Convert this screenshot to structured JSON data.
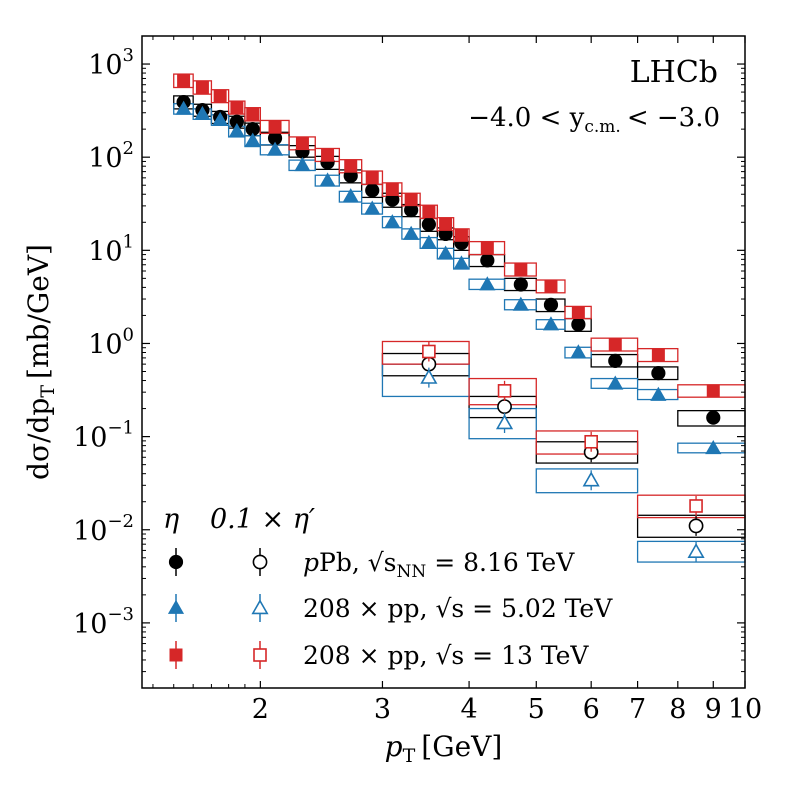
{
  "chart_data": {
    "type": "scatter",
    "x_scale": "log",
    "y_scale": "log",
    "xlim": [
      1.35,
      10
    ],
    "ylim": [
      0.0002,
      2000
    ],
    "xlabel_main": "p",
    "xlabel_sub": "T",
    "xlabel_unit": "[GeV]",
    "ylabel": "dσ/dp",
    "ylabel_sub": "T",
    "ylabel_unit": "[mb/GeV]",
    "x_ticks": [
      {
        "value": 2,
        "label": "2"
      },
      {
        "value": 3,
        "label": "3"
      },
      {
        "value": 4,
        "label": "4"
      },
      {
        "value": 5,
        "label": "5"
      },
      {
        "value": 6,
        "label": "6"
      },
      {
        "value": 7,
        "label": "7"
      },
      {
        "value": 8,
        "label": "8"
      },
      {
        "value": 9,
        "label": "9"
      },
      {
        "value": 10,
        "label": "10"
      }
    ],
    "y_ticks": [
      {
        "value": 0.001,
        "base": "10",
        "exp": "−3"
      },
      {
        "value": 0.01,
        "base": "10",
        "exp": "−2"
      },
      {
        "value": 0.1,
        "base": "10",
        "exp": "−1"
      },
      {
        "value": 1,
        "base": "10",
        "exp": "0"
      },
      {
        "value": 10,
        "base": "10",
        "exp": "1"
      },
      {
        "value": 100,
        "base": "10",
        "exp": "2"
      },
      {
        "value": 1000,
        "base": "10",
        "exp": "3"
      }
    ],
    "annotations": {
      "experiment": "LHCb",
      "rapidity_range": "−4.0 < y",
      "rapidity_sub": "c.m.",
      "rapidity_tail": "< −3.0"
    },
    "legend": {
      "col1_header": "η",
      "col2_header": "0.1 × η′",
      "rows": [
        {
          "prefix": "p",
          "text": "Pb, √s",
          "sub": "NN",
          "tail": " = 8.16 TeV"
        },
        {
          "prefix": "208 × pp",
          "text": ", √s",
          "sub": "",
          "tail": " = 5.02 TeV"
        },
        {
          "prefix": "208 × pp",
          "text": ", √s",
          "sub": "",
          "tail": " = 13 TeV"
        }
      ]
    },
    "colors": {
      "pPb": "#000000",
      "pp502": "#1f77b4",
      "pp13": "#d62728"
    },
    "eta_bins": [
      [
        1.5,
        1.6
      ],
      [
        1.6,
        1.7
      ],
      [
        1.7,
        1.8
      ],
      [
        1.8,
        1.9
      ],
      [
        1.9,
        2.0
      ],
      [
        2.0,
        2.2
      ],
      [
        2.2,
        2.4
      ],
      [
        2.4,
        2.6
      ],
      [
        2.6,
        2.8
      ],
      [
        2.8,
        3.0
      ],
      [
        3.0,
        3.2
      ],
      [
        3.2,
        3.4
      ],
      [
        3.4,
        3.6
      ],
      [
        3.6,
        3.8
      ],
      [
        3.8,
        4.0
      ],
      [
        4.0,
        4.5
      ],
      [
        4.5,
        5.0
      ],
      [
        5.0,
        5.5
      ],
      [
        5.5,
        6.0
      ],
      [
        6.0,
        7.0
      ],
      [
        7.0,
        8.0
      ],
      [
        8.0,
        10.0
      ]
    ],
    "etaprime_bins": [
      [
        3.0,
        4.0
      ],
      [
        4.0,
        5.0
      ],
      [
        5.0,
        7.0
      ],
      [
        7.0,
        10.0
      ]
    ],
    "series": [
      {
        "name": "pPb, √sNN = 8.16 TeV (η)",
        "group": "pPb",
        "marker": "circle",
        "filled": true,
        "particle": "eta",
        "x": [
          1.55,
          1.65,
          1.75,
          1.85,
          1.95,
          2.1,
          2.3,
          2.5,
          2.7,
          2.9,
          3.1,
          3.3,
          3.5,
          3.7,
          3.9,
          4.25,
          4.75,
          5.25,
          5.75,
          6.5,
          7.5,
          9.0
        ],
        "y": [
          390,
          320,
          270,
          240,
          200,
          160,
          115,
          88,
          63,
          44,
          35,
          27,
          19,
          15,
          12,
          7.8,
          4.3,
          2.6,
          1.6,
          0.65,
          0.48,
          0.16
        ],
        "box_lo": [
          330,
          275,
          230,
          205,
          170,
          135,
          100,
          74,
          53,
          37,
          29,
          23,
          16,
          13,
          10,
          6.7,
          3.7,
          2.2,
          1.35,
          0.56,
          0.41,
          0.13
        ],
        "box_hi": [
          455,
          370,
          310,
          275,
          232,
          185,
          133,
          102,
          73,
          51,
          41,
          31,
          22,
          17.4,
          14,
          9.0,
          5.0,
          3.0,
          1.85,
          0.76,
          0.56,
          0.19
        ]
      },
      {
        "name": "208 × pp, √s = 5.02 TeV (η)",
        "group": "pp502",
        "marker": "triangle",
        "filled": true,
        "particle": "eta",
        "x": [
          1.55,
          1.65,
          1.75,
          1.85,
          1.95,
          2.1,
          2.3,
          2.5,
          2.7,
          2.9,
          3.1,
          3.3,
          3.5,
          3.7,
          3.9,
          4.25,
          4.75,
          5.25,
          5.75,
          6.5,
          7.5,
          9.0
        ],
        "y": [
          330,
          290,
          250,
          190,
          150,
          120,
          82,
          56,
          38,
          28,
          20,
          15,
          12,
          9.2,
          7.2,
          4.3,
          2.6,
          1.6,
          0.8,
          0.37,
          0.28,
          0.075
        ],
        "box_lo": [
          290,
          255,
          220,
          165,
          130,
          106,
          72,
          49,
          33,
          24.5,
          17.5,
          13.2,
          10.5,
          8.1,
          6.3,
          3.8,
          2.3,
          1.42,
          0.7,
          0.33,
          0.25,
          0.067
        ],
        "box_hi": [
          375,
          330,
          285,
          215,
          170,
          136,
          93,
          64,
          43,
          32,
          23,
          17,
          13.7,
          10.5,
          8.2,
          4.9,
          2.95,
          1.8,
          0.91,
          0.42,
          0.32,
          0.085
        ]
      },
      {
        "name": "208 × pp, √s = 13 TeV (η)",
        "group": "pp13",
        "marker": "square",
        "filled": true,
        "particle": "eta",
        "x": [
          1.55,
          1.65,
          1.75,
          1.85,
          1.95,
          2.1,
          2.3,
          2.5,
          2.7,
          2.9,
          3.1,
          3.3,
          3.5,
          3.7,
          3.9,
          4.25,
          4.75,
          5.25,
          5.75,
          6.5,
          7.5,
          9.0
        ],
        "y": [
          660,
          560,
          450,
          340,
          290,
          210,
          140,
          105,
          80,
          60,
          45,
          35,
          26,
          19,
          14.5,
          10.5,
          6.2,
          4.1,
          2.15,
          0.97,
          0.75,
          0.31
        ],
        "box_lo": [
          560,
          475,
          385,
          290,
          245,
          180,
          120,
          90,
          68,
          51,
          38,
          30,
          22,
          16.2,
          12.3,
          9.0,
          5.3,
          3.5,
          1.85,
          0.83,
          0.64,
          0.265
        ],
        "box_hi": [
          780,
          660,
          530,
          400,
          340,
          248,
          165,
          124,
          94,
          71,
          53,
          41,
          30.5,
          22.4,
          17,
          12.4,
          7.3,
          4.8,
          2.5,
          1.14,
          0.88,
          0.36
        ]
      },
      {
        "name": "pPb, √sNN = 8.16 TeV (0.1 × η′)",
        "group": "pPb",
        "marker": "circle",
        "filled": false,
        "particle": "etaprime",
        "x": [
          3.5,
          4.5,
          6.0,
          8.5
        ],
        "y": [
          0.6,
          0.21,
          0.068,
          0.011
        ],
        "box_lo": [
          0.45,
          0.16,
          0.052,
          0.0083
        ],
        "box_hi": [
          0.78,
          0.27,
          0.088,
          0.0143
        ]
      },
      {
        "name": "208 × pp, √s = 5.02 TeV (0.1 × η′)",
        "group": "pp502",
        "marker": "triangle",
        "filled": false,
        "particle": "etaprime",
        "x": [
          3.5,
          4.5,
          6.0,
          8.5
        ],
        "y": [
          0.43,
          0.14,
          0.034,
          0.0058
        ],
        "box_lo": [
          0.27,
          0.095,
          0.025,
          0.0045
        ],
        "box_hi": [
          0.6,
          0.2,
          0.045,
          0.0075
        ]
      },
      {
        "name": "208 × pp, √s = 13 TeV (0.1 × η′)",
        "group": "pp13",
        "marker": "square",
        "filled": false,
        "particle": "etaprime",
        "x": [
          3.5,
          4.5,
          6.0,
          8.5
        ],
        "y": [
          0.82,
          0.31,
          0.088,
          0.018
        ],
        "box_lo": [
          0.6,
          0.22,
          0.065,
          0.0135
        ],
        "box_hi": [
          1.05,
          0.42,
          0.115,
          0.0235
        ]
      }
    ]
  }
}
